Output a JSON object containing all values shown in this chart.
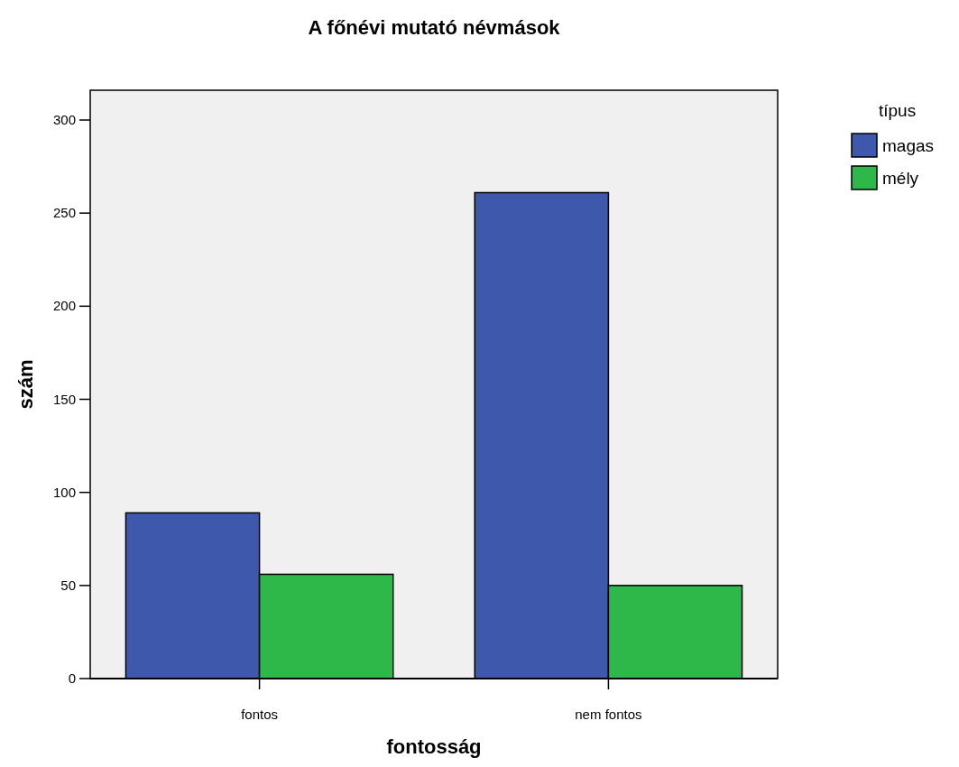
{
  "chart_data": {
    "type": "bar",
    "title": "A főnévi mutató névmások",
    "xlabel": "fontosság",
    "ylabel": "szám",
    "legend_title": "típus",
    "categories": [
      "fontos",
      "nem fontos"
    ],
    "series": [
      {
        "name": "magas",
        "color": "#3e58ac",
        "values": [
          89,
          261
        ]
      },
      {
        "name": "mély",
        "color": "#2eb84a",
        "values": [
          56,
          50
        ]
      }
    ],
    "ylim": [
      0,
      316
    ],
    "yticks": [
      0,
      50,
      100,
      150,
      200,
      250,
      300
    ],
    "grid": false,
    "legend": "top right"
  }
}
